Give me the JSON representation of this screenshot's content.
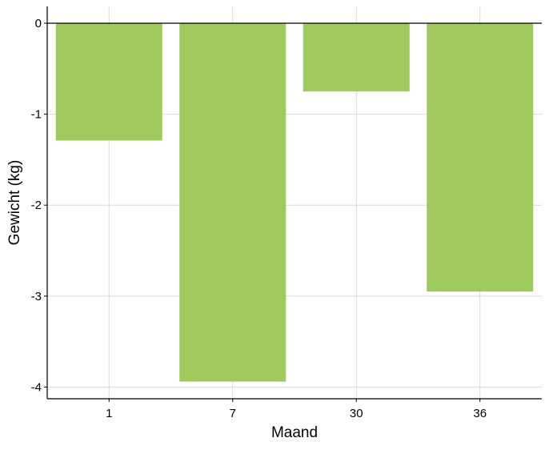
{
  "chart_data": {
    "type": "bar",
    "title": "",
    "xlabel": "Maand",
    "ylabel": "Gewicht (kg)",
    "categories": [
      "1",
      "7",
      "30",
      "36"
    ],
    "values": [
      -1.29,
      -3.94,
      -0.75,
      -2.95
    ],
    "ylim": [
      -4.0,
      0.0
    ],
    "yticks": [
      0,
      -1,
      -2,
      -3,
      -4
    ],
    "ytick_labels": [
      "0",
      "-1",
      "-2",
      "-3",
      "-4"
    ],
    "grid": true,
    "legend": "none",
    "bar_color": "#a0c95e",
    "grid_color": "#d9d9d9"
  }
}
